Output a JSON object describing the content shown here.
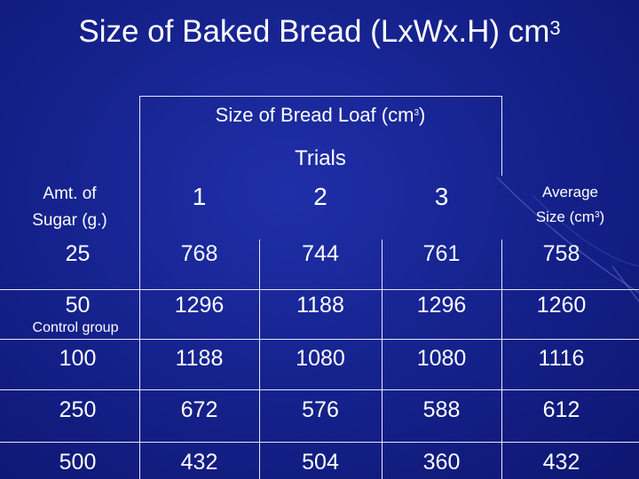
{
  "title": {
    "text": "Size of Baked Bread (LxWx.H) cm",
    "sup": "3"
  },
  "table": {
    "group_header": {
      "text": "Size of Bread Loaf (cm",
      "sup": "3",
      "close": ")"
    },
    "trials_label": "Trials",
    "row_header": {
      "line1": "Amt. of",
      "line2": "Sugar (g.)"
    },
    "trial_numbers": [
      "1",
      "2",
      "3"
    ],
    "avg_header": {
      "line1": "Average",
      "line2": "Size (cm",
      "sup": "3",
      "close": ")"
    },
    "control_label": "Control group",
    "rows": [
      {
        "sugar": "25",
        "t1": "768",
        "t2": "744",
        "t3": "761",
        "avg": "758"
      },
      {
        "sugar": "50",
        "t1": "1296",
        "t2": "1188",
        "t3": "1296",
        "avg": "1260"
      },
      {
        "sugar": "100",
        "t1": "1188",
        "t2": "1080",
        "t3": "1080",
        "avg": "1116"
      },
      {
        "sugar": "250",
        "t1": "672",
        "t2": "576",
        "t3": "588",
        "avg": "612"
      },
      {
        "sugar": "500",
        "t1": "432",
        "t2": "504",
        "t3": "360",
        "avg": "432"
      }
    ]
  }
}
